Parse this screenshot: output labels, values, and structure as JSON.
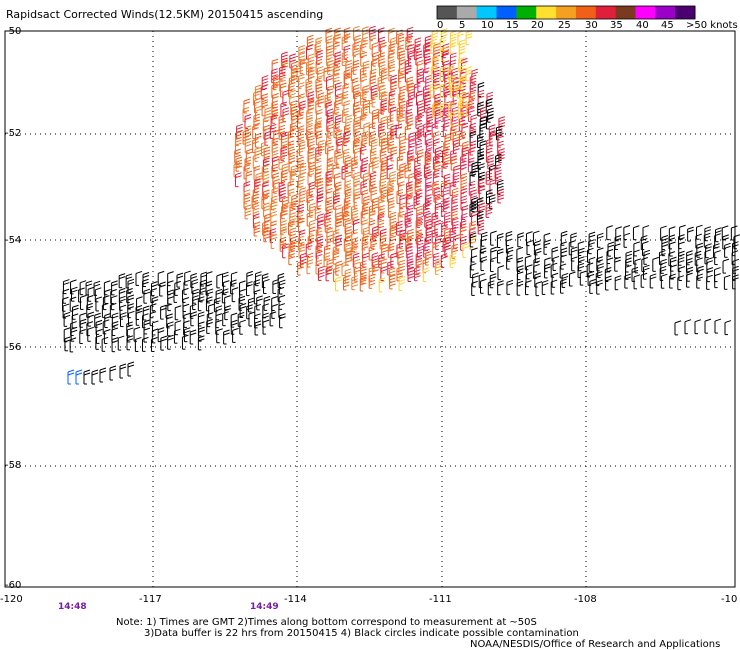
{
  "title": "Rapidsact Corrected Winds(12.5KM) 20150415 ascending",
  "color_scale": {
    "labels": [
      "0",
      "5",
      "10",
      "15",
      "20",
      "25",
      "30",
      "35",
      "40",
      "45",
      ">50 knots"
    ],
    "colors": [
      "#555555",
      "#aaaaaa",
      "#00c8ff",
      "#0060ff",
      "#00b000",
      "#ffe030",
      "#f5a020",
      "#f06018",
      "#e0203a",
      "#7a3a20",
      "#ff00ff",
      "#9a00c8",
      "#4a0070"
    ]
  },
  "latitude_labels": [
    "-50",
    "-52",
    "-54",
    "-56",
    "-58",
    "-60"
  ],
  "longitude_labels": [
    "-120",
    "-117",
    "-114",
    "-111",
    "-108",
    "-10"
  ],
  "times": [
    "14:48",
    "14:49"
  ],
  "notes": [
    "Note: 1) Times are GMT 2)Times along bottom correspond to measurement at ~50S",
    "3)Data buffer is 22 hrs from 20150415 4) Black circles indicate possible contamination",
    "NOAA/NESDIS/Office of Research and Applications"
  ]
}
